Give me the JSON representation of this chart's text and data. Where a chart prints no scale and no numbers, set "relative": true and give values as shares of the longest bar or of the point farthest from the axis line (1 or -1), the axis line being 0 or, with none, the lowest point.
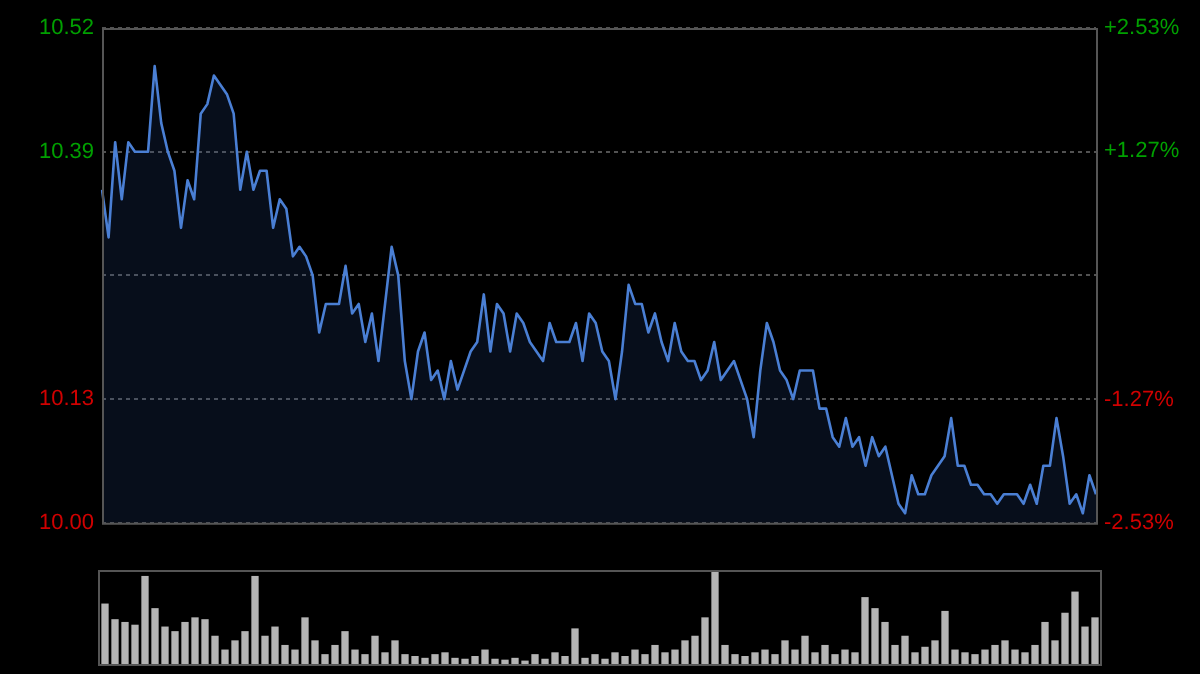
{
  "chart_data": [
    {
      "type": "area",
      "color": "#4a7fd4",
      "grid": "y",
      "legend": false,
      "tick_labels": "y",
      "ylim": [
        10.0,
        10.52
      ],
      "yticks": [
        {
          "value": 10.0,
          "label": "10.00"
        },
        10.13,
        {
          "value": 10.26,
          "label": null
        },
        10.39,
        10.52
      ],
      "y2lim": [
        -2.53,
        2.53
      ],
      "y2ticks": [
        {
          "value": -2.53,
          "label": "-2.53%"
        },
        {
          "value": -1.27,
          "label": "-1.27%"
        },
        {
          "value": 0,
          "label": null
        },
        {
          "value": 1.27,
          "label": "+1.27%"
        },
        {
          "value": 2.53,
          "label": "+2.53%"
        }
      ],
      "categories": [
        null,
        null,
        null,
        null,
        null,
        null,
        null,
        null,
        null,
        null,
        null,
        null,
        null,
        null,
        null,
        null,
        null,
        null,
        null,
        null,
        null,
        null,
        null,
        null,
        null,
        null,
        null,
        null,
        null,
        null,
        null,
        null,
        null,
        null,
        null,
        null,
        null,
        null,
        null,
        null,
        null,
        null,
        null,
        null,
        null,
        null,
        null,
        null,
        null,
        null,
        null,
        null,
        null,
        null,
        null,
        null,
        null,
        null,
        null,
        null,
        null,
        null,
        null,
        null,
        null,
        null,
        null,
        null,
        null,
        null,
        null,
        null,
        null,
        null,
        null,
        null,
        null,
        null,
        null,
        null,
        null,
        null,
        null,
        null,
        null,
        null,
        null,
        null,
        null,
        null,
        null,
        null,
        null,
        null,
        null,
        null,
        null,
        null,
        null,
        null,
        null,
        null,
        null,
        null,
        null,
        null,
        null,
        null,
        null,
        null,
        null,
        null,
        null,
        null,
        null,
        null,
        null,
        null,
        null,
        null,
        null,
        null,
        null,
        null,
        null,
        null,
        null,
        null,
        null,
        null,
        null,
        null,
        null,
        null,
        null,
        null,
        null,
        null,
        null,
        null,
        null,
        null,
        null,
        null,
        null,
        null,
        null,
        null,
        null,
        null,
        null,
        null
      ],
      "values": [
        10.35,
        10.3,
        10.4,
        10.34,
        10.4,
        10.39,
        10.39,
        10.39,
        10.48,
        10.42,
        10.39,
        10.37,
        10.31,
        10.36,
        10.34,
        10.43,
        10.44,
        10.47,
        10.46,
        10.45,
        10.43,
        10.35,
        10.39,
        10.35,
        10.37,
        10.37,
        10.31,
        10.34,
        10.33,
        10.28,
        10.29,
        10.28,
        10.26,
        10.2,
        10.23,
        10.23,
        10.23,
        10.27,
        10.22,
        10.23,
        10.19,
        10.22,
        10.17,
        10.23,
        10.29,
        10.26,
        10.17,
        10.13,
        10.18,
        10.2,
        10.15,
        10.16,
        10.13,
        10.17,
        10.14,
        10.16,
        10.18,
        10.19,
        10.24,
        10.18,
        10.23,
        10.22,
        10.18,
        10.22,
        10.21,
        10.19,
        10.18,
        10.17,
        10.21,
        10.19,
        10.19,
        10.19,
        10.21,
        10.17,
        10.22,
        10.21,
        10.18,
        10.17,
        10.13,
        10.18,
        10.25,
        10.23,
        10.23,
        10.2,
        10.22,
        10.19,
        10.17,
        10.21,
        10.18,
        10.17,
        10.17,
        10.15,
        10.16,
        10.19,
        10.15,
        10.16,
        10.17,
        10.15,
        10.13,
        10.09,
        10.16,
        10.21,
        10.19,
        10.16,
        10.15,
        10.13,
        10.16,
        10.16,
        10.16,
        10.12,
        10.12,
        10.09,
        10.08,
        10.11,
        10.08,
        10.09,
        10.06,
        10.09,
        10.07,
        10.08,
        10.05,
        10.02,
        10.01,
        10.05,
        10.03,
        10.03,
        10.05,
        10.06,
        10.07,
        10.11,
        10.06,
        10.06,
        10.04,
        10.04,
        10.03,
        10.03,
        10.02,
        10.03,
        10.03,
        10.03,
        10.02,
        10.04,
        10.02,
        10.06,
        10.06,
        10.11,
        10.07,
        10.02,
        10.03,
        10.01,
        10.05,
        10.03
      ]
    },
    {
      "type": "bar",
      "relative": true,
      "color": "#b4b4b4",
      "tick_labels": false,
      "legend": false,
      "categories": [
        null,
        null,
        null,
        null,
        null,
        null,
        null,
        null,
        null,
        null,
        null,
        null,
        null,
        null,
        null,
        null,
        null,
        null,
        null,
        null,
        null,
        null,
        null,
        null,
        null,
        null,
        null,
        null,
        null,
        null,
        null,
        null,
        null,
        null,
        null,
        null,
        null,
        null,
        null,
        null,
        null,
        null,
        null,
        null,
        null,
        null,
        null,
        null,
        null,
        null,
        null,
        null,
        null,
        null,
        null,
        null,
        null,
        null,
        null,
        null,
        null,
        null,
        null,
        null,
        null,
        null,
        null,
        null,
        null,
        null,
        null,
        null,
        null,
        null,
        null,
        null,
        null,
        null,
        null,
        null,
        null,
        null,
        null,
        null,
        null,
        null,
        null,
        null,
        null,
        null,
        null,
        null,
        null,
        null,
        null,
        null,
        null,
        null,
        null,
        null
      ],
      "values": [
        0.65,
        0.48,
        0.45,
        0.42,
        0.95,
        0.6,
        0.4,
        0.35,
        0.45,
        0.5,
        0.48,
        0.3,
        0.15,
        0.25,
        0.35,
        0.95,
        0.3,
        0.4,
        0.2,
        0.15,
        0.5,
        0.25,
        0.1,
        0.2,
        0.35,
        0.15,
        0.1,
        0.3,
        0.12,
        0.25,
        0.1,
        0.08,
        0.06,
        0.1,
        0.12,
        0.06,
        0.05,
        0.08,
        0.15,
        0.05,
        0.04,
        0.06,
        0.03,
        0.1,
        0.05,
        0.12,
        0.08,
        0.38,
        0.06,
        0.1,
        0.05,
        0.12,
        0.08,
        0.15,
        0.1,
        0.2,
        0.12,
        0.15,
        0.25,
        0.3,
        0.5,
        1.0,
        0.2,
        0.1,
        0.08,
        0.12,
        0.15,
        0.1,
        0.25,
        0.15,
        0.3,
        0.12,
        0.2,
        0.1,
        0.15,
        0.12,
        0.72,
        0.6,
        0.45,
        0.2,
        0.3,
        0.12,
        0.18,
        0.25,
        0.57,
        0.15,
        0.12,
        0.1,
        0.15,
        0.2,
        0.25,
        0.15,
        0.12,
        0.2,
        0.45,
        0.25,
        0.55,
        0.78,
        0.4,
        0.5
      ]
    }
  ]
}
